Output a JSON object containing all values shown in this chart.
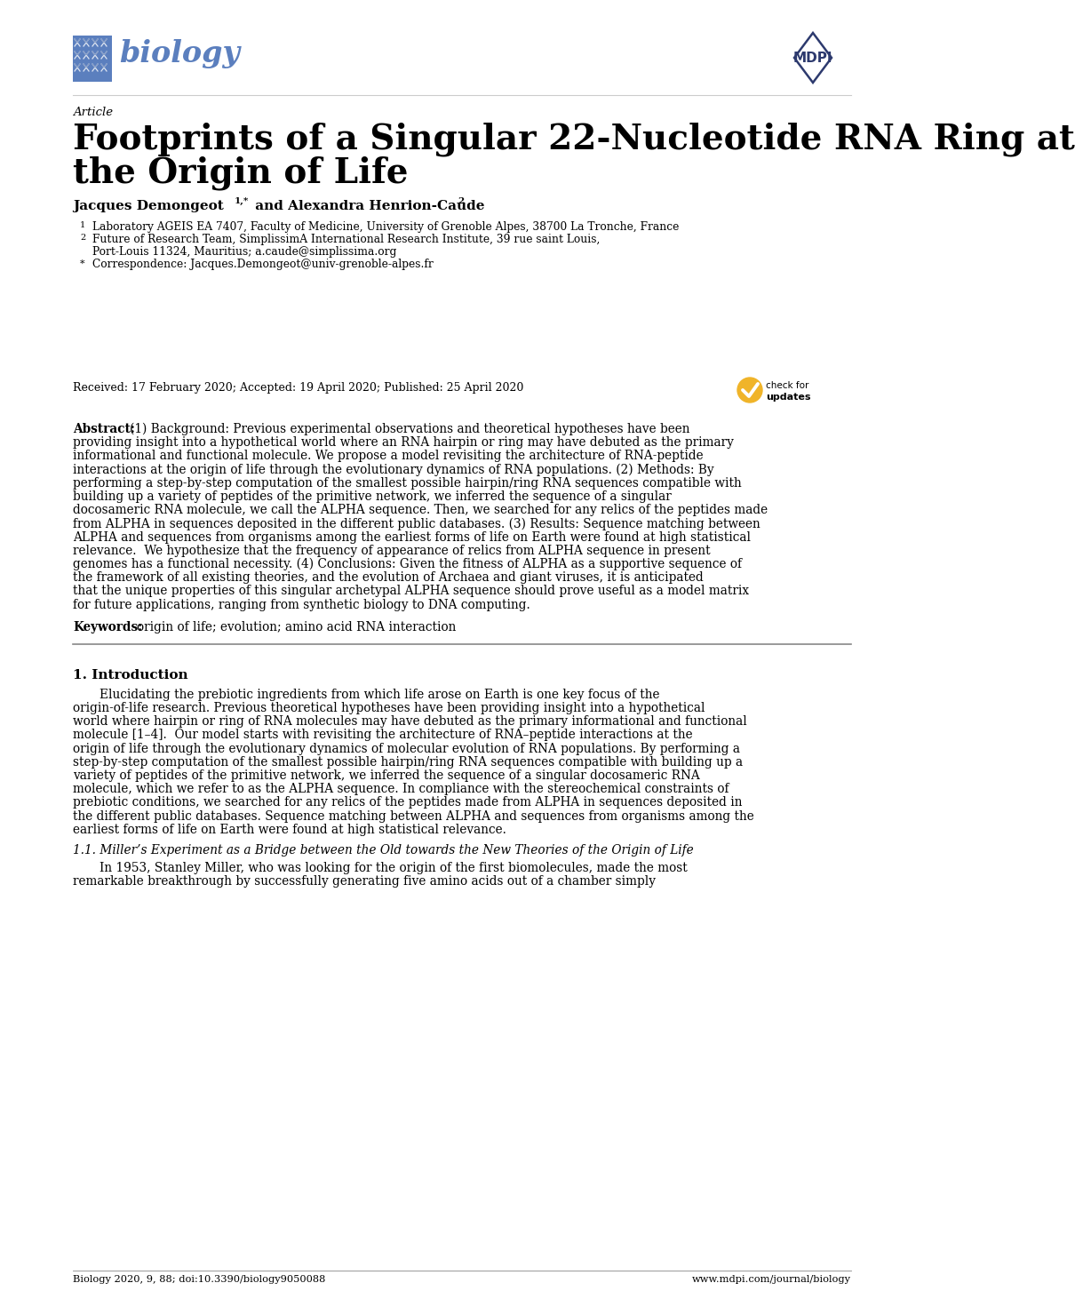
{
  "bg_color": "#ffffff",
  "title_italic": "Article",
  "title_main_line1": "Footprints of a Singular 22-Nucleotide RNA Ring at",
  "title_main_line2": "the Origin of Life",
  "author_name1": "Jacques Demongeot ",
  "author_sup1": "1,*",
  "author_mid": " and Alexandra Henrion-Caude ",
  "author_sup2": "2",
  "affil1_num": "1",
  "affil1_text": "Laboratory AGEIS EA 7407, Faculty of Medicine, University of Grenoble Alpes, 38700 La Tronche, France",
  "affil2_num": "2",
  "affil2_text": "Future of Research Team, SimplissimA International Research Institute, 39 rue saint Louis,",
  "affil2b_text": "Port-Louis 11324, Mauritius; a.caude@simplissima.org",
  "affil3_sym": "*",
  "affil3_text": "Correspondence: Jacques.Demongeot@univ-grenoble-alpes.fr",
  "received": "Received: 17 February 2020; Accepted: 19 April 2020; Published: 25 April 2020",
  "abstract_label": "Abstract:",
  "abstract_body": "(1) Background: Previous experimental observations and theoretical hypotheses have been providing insight into a hypothetical world where an RNA hairpin or ring may have debuted as the primary informational and functional molecule. We propose a model revisiting the architecture of RNA-peptide interactions at the origin of life through the evolutionary dynamics of RNA populations. (2) Methods: By performing a step-by-step computation of the smallest possible hairpin/ring RNA sequences compatible with building up a variety of peptides of the primitive network, we inferred the sequence of a singular docosameric RNA molecule, we call the ALPHA sequence. Then, we searched for any relics of the peptides made from ALPHA in sequences deposited in the different public databases. (3) Results: Sequence matching between ALPHA and sequences from organisms among the earliest forms of life on Earth were found at high statistical relevance.  We hypothesize that the frequency of appearance of relics from ALPHA sequence in present genomes has a functional necessity. (4) Conclusions: Given the fitness of ALPHA as a supportive sequence of the framework of all existing theories, and the evolution of Archaea and giant viruses, it is anticipated that the unique properties of this singular archetypal ALPHA sequence should prove useful as a model matrix for future applications, ranging from synthetic biology to DNA computing.",
  "keywords_label": "Keywords:",
  "keywords_body": "origin of life; evolution; amino acid RNA interaction",
  "section1_title": "1. Introduction",
  "section1_para1": "Elucidating the prebiotic ingredients from which life arose on Earth is one key focus of the origin-of-life research. Previous theoretical hypotheses have been providing insight into a hypothetical world where hairpin or ring of RNA molecules may have debuted as the primary informational and functional molecule [1–4].  Our model starts with revisiting the architecture of RNA–peptide interactions at the origin of life through the evolutionary dynamics of molecular evolution of RNA populations. By performing a step-by-step computation of the smallest possible hairpin/ring RNA sequences compatible with building up a variety of peptides of the primitive network, we inferred the sequence of a singular docosameric RNA molecule, which we refer to as the ALPHA sequence. In compliance with the stereochemical constraints of prebiotic conditions, we searched for any relics of the peptides made from ALPHA in sequences deposited in the different public databases. Sequence matching between ALPHA and sequences from organisms among the earliest forms of life on Earth were found at high statistical relevance.",
  "section1_sub_title": "1.1. Miller’s Experiment as a Bridge between the Old towards the New Theories of the Origin of Life",
  "section1_para2": "In 1953, Stanley Miller, who was looking for the origin of the first biomolecules, made the most remarkable breakthrough by successfully generating five amino acids out of a chamber simply",
  "footer_left": "Biology 2020, 9, 88; doi:10.3390/biology9050088",
  "footer_right": "www.mdpi.com/journal/biology",
  "biology_logo_color": "#5b7fbe",
  "mdpi_color": "#2d3a6e",
  "badge_color": "#f0b429",
  "text_color": "#000000"
}
